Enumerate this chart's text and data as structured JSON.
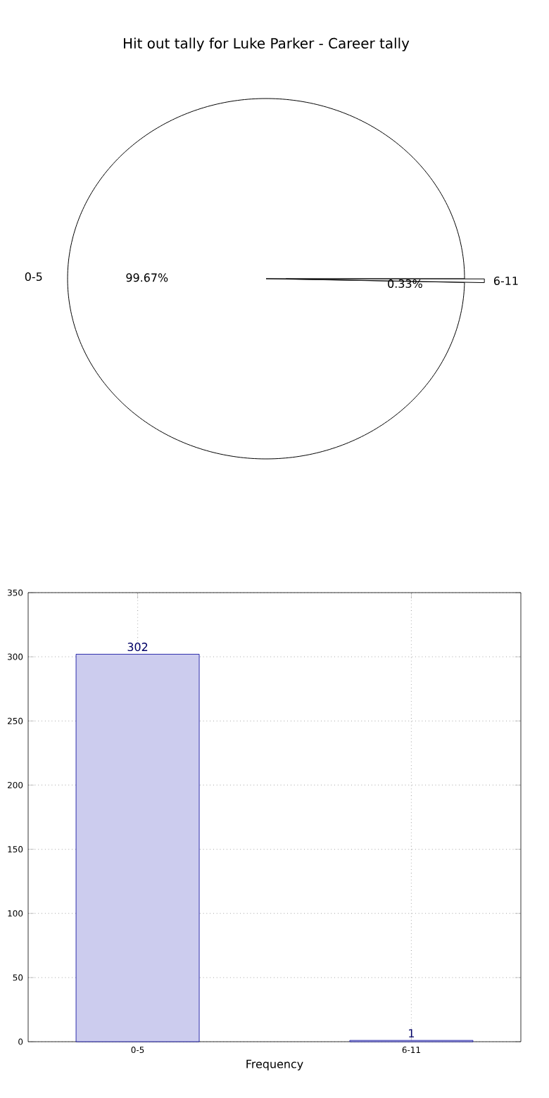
{
  "chart_data": [
    {
      "type": "pie",
      "title": "Hit out tally for Luke Parker - Career tally",
      "categories": [
        "0-5",
        "6-11"
      ],
      "values": [
        99.67,
        0.33
      ],
      "value_labels": [
        "99.67%",
        "0.33%"
      ],
      "colors": [
        "#ffffff",
        "#ffffff"
      ]
    },
    {
      "type": "bar",
      "categories": [
        "0-5",
        "6-11"
      ],
      "values": [
        302,
        1
      ],
      "color": "#ccccee",
      "xlabel": "Frequency",
      "ylim": [
        0,
        350
      ],
      "yticks": [
        0,
        50,
        100,
        150,
        200,
        250,
        300,
        350
      ],
      "grid": true,
      "data_labels": true
    }
  ]
}
